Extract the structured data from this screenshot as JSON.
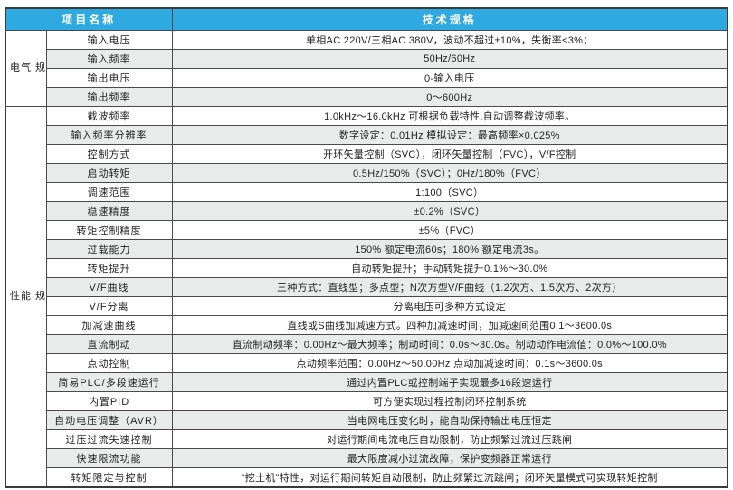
{
  "colors": {
    "header_bg": "#2ea9e2",
    "row_alt_bg": "#e9eaea",
    "border": "#4a4a4a"
  },
  "table": {
    "header": {
      "col_item": "项目名称",
      "col_spec": "技术规格"
    },
    "groups": [
      {
        "label": "电气\n规格",
        "rows": [
          {
            "name": "输入电压",
            "value": "单相AC 220V/三相AC 380V，波动不超过±10%，失衡率<3%；"
          },
          {
            "name": "输入频率",
            "value": "50Hz/60Hz"
          },
          {
            "name": "输出电压",
            "value": "0-输入电压"
          },
          {
            "name": "输出频率",
            "value": "0～600Hz"
          }
        ]
      },
      {
        "label": "性能\n规格",
        "rows": [
          {
            "name": "截波频率",
            "value": "1.0kHz～16.0kHz 可根据负载特性,自动调整截波频率。"
          },
          {
            "name": "输入频率分辨率",
            "value": "数字设定：0.01Hz 模拟设定：最高频率×0.025%"
          },
          {
            "name": "控制方式",
            "value": "开环矢量控制（SVC），闭环矢量控制（FVC），V/F控制"
          },
          {
            "name": "启动转矩",
            "value": "0.5Hz/150%（SVC）；0Hz/180%（FVC）"
          },
          {
            "name": "调速范围",
            "value": "1:100（SVC）"
          },
          {
            "name": "稳速精度",
            "value": "±0.2%（SVC）"
          },
          {
            "name": "转矩控制精度",
            "value": "±5%（FVC）"
          },
          {
            "name": "过载能力",
            "value": "150% 额定电流60s；180% 额定电流3s。"
          },
          {
            "name": "转矩提升",
            "value": "自动转矩提升；手动转矩提升0.1%～30.0%"
          },
          {
            "name": "V/F曲线",
            "value": "三种方式：直线型；多点型；N次方型V/F曲线（1.2次方、1.5次方、2次方）"
          },
          {
            "name": "V/F分离",
            "value": "分离电压可多种方式设定"
          },
          {
            "name": "加减速曲线",
            "value": "直线或S曲线加减速方式。四种加减速时间，加减速间范围0.1～3600.0s"
          },
          {
            "name": "直流制动",
            "value": "直流制动频率：0.00Hz～最大频率；制动时间：0.0s～30.0s。制动动作电流值：0.0%～100.0%"
          },
          {
            "name": "点动控制",
            "value": "点动频率范围：0.00Hz～50.00Hz 点动加减速时间：0.1s～3600.0s"
          },
          {
            "name": "简易PLC/多段速运行",
            "value": "通过内置PLC或控制端子实现最多16段速运行"
          },
          {
            "name": "内置PID",
            "value": "可方便实现过程控制闭环控制系统"
          },
          {
            "name": "自动电压调整（AVR）",
            "value": "当电网电压变化时，能自动保持输出电压恒定"
          },
          {
            "name": "过压过流失速控制",
            "value": "对运行期间电流电压自动限制，防止频繁过流过压跳闸"
          },
          {
            "name": "快速限流功能",
            "value": "最大限度减小过流故障，保护变频器正常运行"
          },
          {
            "name": "转矩限定与控制",
            "value": "“挖土机”特性，对运行期间转矩自动限制，防止频繁过流跳闸；闭环矢量模式可实现转矩控制"
          }
        ]
      }
    ]
  }
}
